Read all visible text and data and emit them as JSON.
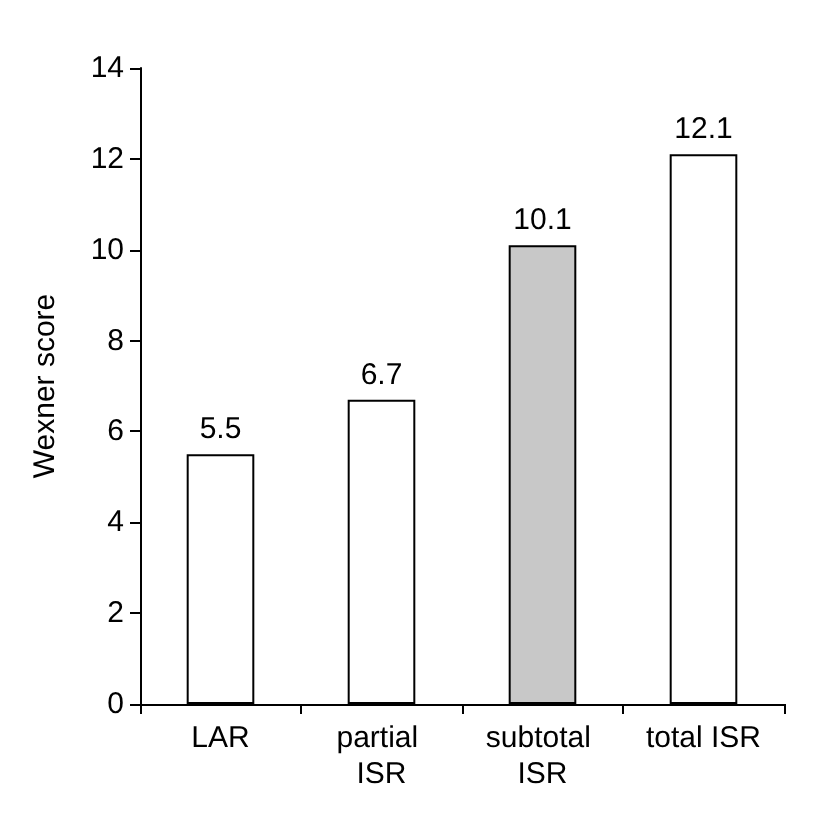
{
  "chart_data": {
    "type": "bar",
    "ylabel": "Wexner score",
    "categories": [
      "LAR",
      "partial ISR",
      "subtotal ISR",
      "total ISR"
    ],
    "values": [
      5.5,
      6.7,
      10.1,
      12.1
    ],
    "colors": [
      "#ffffff",
      "#ffffff",
      "#c8c8c8",
      "#ffffff"
    ],
    "ylim": [
      0,
      14
    ],
    "yticks": [
      0,
      2,
      4,
      6,
      8,
      10,
      12,
      14
    ],
    "data_labels": true
  }
}
